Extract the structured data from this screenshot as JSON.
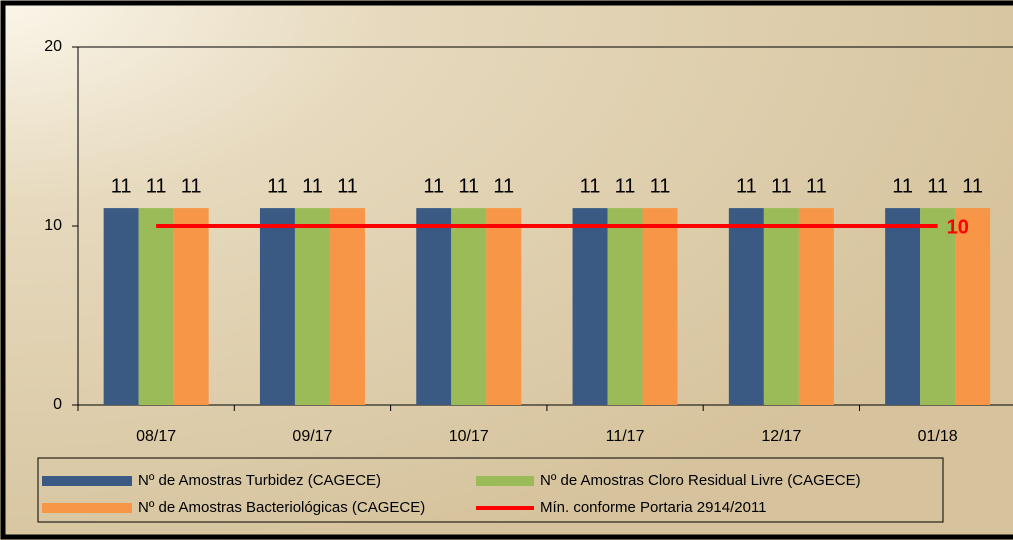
{
  "chart_data": {
    "type": "bar",
    "categories": [
      "08/17",
      "09/17",
      "10/17",
      "11/17",
      "12/17",
      "01/18"
    ],
    "series": [
      {
        "name": "Nº de Amostras Turbidez (CAGECE)",
        "color": "#3a5a83",
        "values": [
          11,
          11,
          11,
          11,
          11,
          11
        ]
      },
      {
        "name": "Nº de Amostras Cloro Residual Livre (CAGECE)",
        "color": "#9bbb59",
        "values": [
          11,
          11,
          11,
          11,
          11,
          11
        ]
      },
      {
        "name": "Nº de Amostras Bacteriológicas (CAGECE)",
        "color": "#f79646",
        "values": [
          11,
          11,
          11,
          11,
          11,
          11
        ]
      },
      {
        "name": "Mín. conforme Portaria 2914/2011",
        "color": "#ff0000",
        "type": "line",
        "values": [
          10,
          10,
          10,
          10,
          10,
          10
        ]
      }
    ],
    "ylim": [
      0,
      20
    ],
    "yticks": [
      0,
      10,
      20
    ]
  }
}
